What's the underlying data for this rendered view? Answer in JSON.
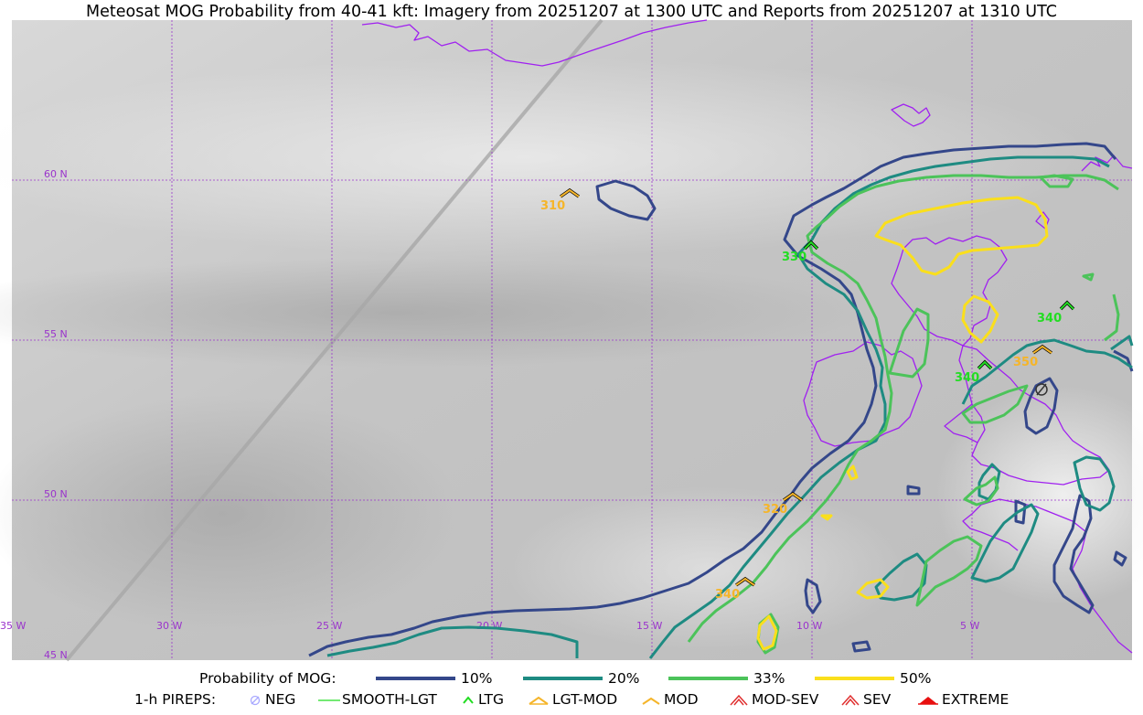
{
  "title": "Meteosat MOG Probability from 40-41 kft: Imagery from 20251207 at 1300 UTC and Reports from 20251207 at 1310 UTC",
  "map": {
    "lat_labels": [
      "60 N",
      "55 N",
      "50 N",
      "45 N"
    ],
    "lon_labels": [
      "35 W",
      "30 W",
      "25 W",
      "20 W",
      "15 W",
      "10 W",
      "5 W"
    ],
    "colors": {
      "grid": "#9a33cc",
      "coast": "#a020f0",
      "p10": "#34478a",
      "p20": "#1e8b82",
      "p33": "#4cc35a",
      "p50": "#fadf1c",
      "ltg": "#22dd22",
      "lgt_mod": "#f5b52a"
    },
    "reports": [
      {
        "label": "310",
        "type": "LGT-MOD"
      },
      {
        "label": "330",
        "type": "LTG"
      },
      {
        "label": "340",
        "type": "LTG"
      },
      {
        "label": "350",
        "type": "LGT-MOD"
      },
      {
        "label": "340",
        "type": "LTG"
      },
      {
        "label": "320",
        "type": "LGT-MOD"
      },
      {
        "label": "340",
        "type": "LGT-MOD"
      }
    ]
  },
  "legend": {
    "probability": {
      "heading": "Probability of MOG:",
      "items": [
        {
          "label": "10%",
          "color": "#34478a"
        },
        {
          "label": "20%",
          "color": "#1e8b82"
        },
        {
          "label": "33%",
          "color": "#4cc35a"
        },
        {
          "label": "50%",
          "color": "#fadf1c"
        }
      ]
    },
    "pireps": {
      "heading": "1-h PIREPS:",
      "items": [
        {
          "label": "NEG",
          "icon": "neg-icon"
        },
        {
          "label": "SMOOTH-LGT",
          "icon": "smooth-lgt-icon"
        },
        {
          "label": "LTG",
          "icon": "ltg-icon"
        },
        {
          "label": "LGT-MOD",
          "icon": "lgt-mod-icon"
        },
        {
          "label": "MOD",
          "icon": "mod-icon"
        },
        {
          "label": "MOD-SEV",
          "icon": "mod-sev-icon"
        },
        {
          "label": "SEV",
          "icon": "sev-icon"
        },
        {
          "label": "EXTREME",
          "icon": "extreme-icon"
        }
      ]
    }
  }
}
